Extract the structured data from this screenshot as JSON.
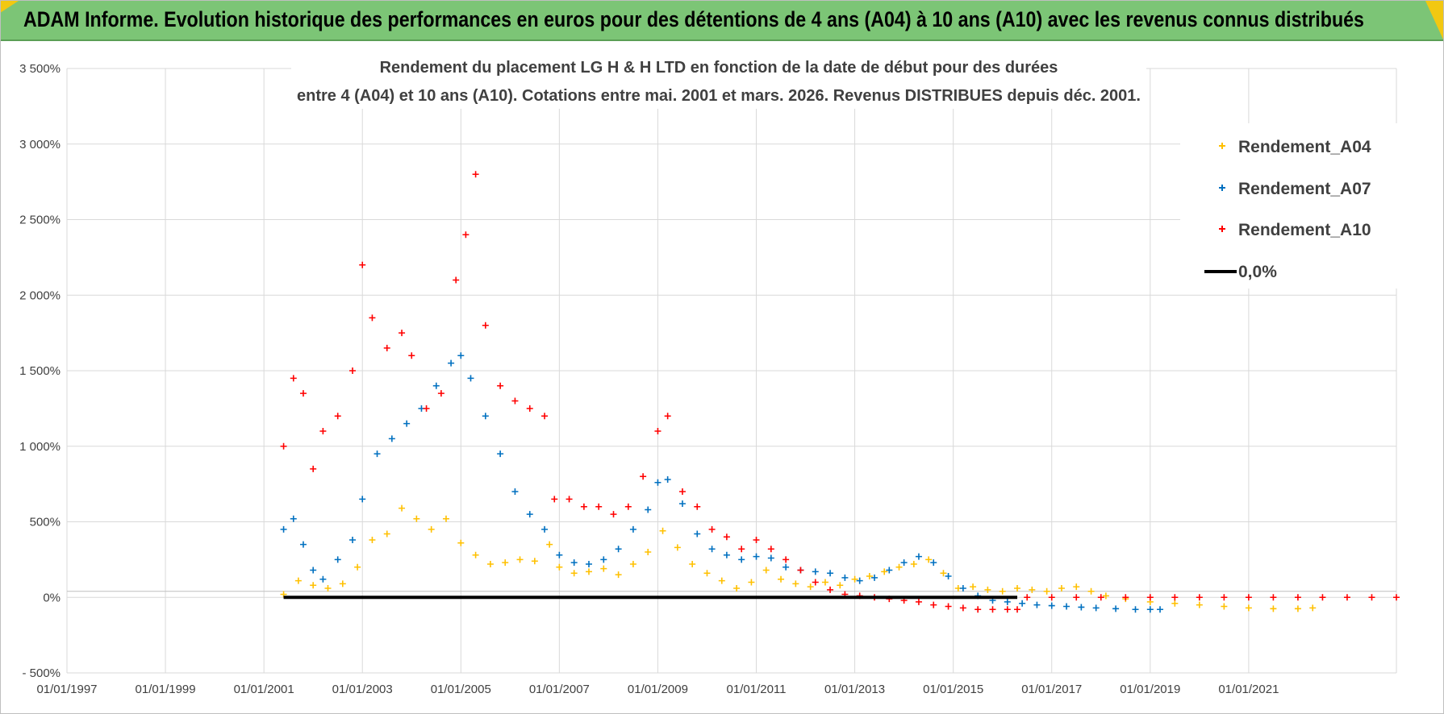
{
  "page": {
    "header_title": "ADAM Informe. Evolution historique des performances en euros pour des détentions de 4 ans (A04) à 10 ans (A10) avec les revenus connus distribués"
  },
  "colors": {
    "header_bg": "#7cc576",
    "corner": "#f2c811",
    "grid": "#d9d9d9",
    "zero_line": "#000000",
    "text": "#404040"
  },
  "chart_data": {
    "type": "scatter",
    "title_line1": "Rendement du placement LG H & H LTD en fonction de la date de début pour des durées",
    "title_line2": "entre 4 (A04) et 10 ans (A10). Cotations entre mai. 2001 et mars. 2026. Revenus DISTRIBUES depuis déc. 2001.",
    "xlabel": "",
    "ylabel": "",
    "x_range": [
      1997.0,
      2024.0
    ],
    "ylim": [
      -500,
      3500
    ],
    "x_tick_values": [
      1997,
      1999,
      2001,
      2003,
      2005,
      2007,
      2009,
      2011,
      2013,
      2015,
      2017,
      2019,
      2021
    ],
    "x_tick_labels": [
      "01/01/1997",
      "01/01/1999",
      "01/01/2001",
      "01/01/2003",
      "01/01/2005",
      "01/01/2007",
      "01/01/2009",
      "01/01/2011",
      "01/01/2013",
      "01/01/2015",
      "01/01/2017",
      "01/01/2019",
      "01/01/2021"
    ],
    "y_tick_values": [
      -500,
      0,
      500,
      1000,
      1500,
      2000,
      2500,
      3000,
      3500
    ],
    "y_tick_labels": [
      "- 500%",
      "0%",
      "500%",
      "1 000%",
      "1 500%",
      "2 000%",
      "2 500%",
      "3 000%",
      "3 500%"
    ],
    "grid": true,
    "legend_position": "top-right",
    "series": [
      {
        "name": "Rendement_A04",
        "color": "#ffc000",
        "marker": "+",
        "x": [
          2001.4,
          2001.7,
          2002.0,
          2002.3,
          2002.6,
          2002.9,
          2003.2,
          2003.5,
          2003.8,
          2004.1,
          2004.4,
          2004.7,
          2005.0,
          2005.3,
          2005.6,
          2005.9,
          2006.2,
          2006.5,
          2006.8,
          2007.0,
          2007.3,
          2007.6,
          2007.9,
          2008.2,
          2008.5,
          2008.8,
          2009.1,
          2009.4,
          2009.7,
          2010.0,
          2010.3,
          2010.6,
          2010.9,
          2011.2,
          2011.5,
          2011.8,
          2012.1,
          2012.4,
          2012.7,
          2013.0,
          2013.3,
          2013.6,
          2013.9,
          2014.2,
          2014.5,
          2014.8,
          2015.1,
          2015.4,
          2015.7,
          2016.0,
          2016.3,
          2016.6,
          2016.9,
          2017.2,
          2017.5,
          2017.8,
          2018.1,
          2018.5,
          2019.0,
          2019.5,
          2020.0,
          2020.5,
          2021.0,
          2021.5,
          2022.0,
          2022.3
        ],
        "y": [
          20,
          110,
          80,
          60,
          90,
          200,
          380,
          420,
          590,
          520,
          450,
          520,
          360,
          280,
          220,
          230,
          250,
          240,
          350,
          200,
          160,
          170,
          190,
          150,
          220,
          300,
          440,
          330,
          220,
          160,
          110,
          60,
          100,
          180,
          120,
          90,
          70,
          100,
          80,
          120,
          140,
          170,
          200,
          220,
          250,
          160,
          60,
          70,
          50,
          40,
          60,
          50,
          40,
          60,
          70,
          40,
          10,
          -10,
          -30,
          -40,
          -50,
          -60,
          -70,
          -75,
          -75,
          -70
        ]
      },
      {
        "name": "Rendement_A07",
        "color": "#0070c0",
        "marker": "+",
        "x": [
          2001.4,
          2001.6,
          2001.8,
          2002.0,
          2002.2,
          2002.5,
          2002.8,
          2003.0,
          2003.3,
          2003.6,
          2003.9,
          2004.2,
          2004.5,
          2004.8,
          2005.0,
          2005.2,
          2005.5,
          2005.8,
          2006.1,
          2006.4,
          2006.7,
          2007.0,
          2007.3,
          2007.6,
          2007.9,
          2008.2,
          2008.5,
          2008.8,
          2009.0,
          2009.2,
          2009.5,
          2009.8,
          2010.1,
          2010.4,
          2010.7,
          2011.0,
          2011.3,
          2011.6,
          2011.9,
          2012.2,
          2012.5,
          2012.8,
          2013.1,
          2013.4,
          2013.7,
          2014.0,
          2014.3,
          2014.6,
          2014.9,
          2015.2,
          2015.5,
          2015.8,
          2016.1,
          2016.4,
          2016.7,
          2017.0,
          2017.3,
          2017.6,
          2017.9,
          2018.3,
          2018.7,
          2019.0,
          2019.2
        ],
        "y": [
          450,
          520,
          350,
          180,
          120,
          250,
          380,
          650,
          950,
          1050,
          1150,
          1250,
          1400,
          1550,
          1600,
          1450,
          1200,
          950,
          700,
          550,
          450,
          280,
          230,
          220,
          250,
          320,
          450,
          580,
          760,
          780,
          620,
          420,
          320,
          280,
          250,
          270,
          260,
          200,
          180,
          170,
          160,
          130,
          110,
          130,
          180,
          230,
          270,
          230,
          140,
          60,
          10,
          -20,
          -30,
          -40,
          -50,
          -55,
          -60,
          -65,
          -70,
          -75,
          -80,
          -80,
          -80
        ]
      },
      {
        "name": "Rendement_A10",
        "color": "#ff0000",
        "marker": "+",
        "x": [
          2001.4,
          2001.6,
          2001.8,
          2002.0,
          2002.2,
          2002.5,
          2002.8,
          2003.0,
          2003.2,
          2003.5,
          2003.8,
          2004.0,
          2004.3,
          2004.6,
          2004.9,
          2005.1,
          2005.3,
          2005.5,
          2005.8,
          2006.1,
          2006.4,
          2006.7,
          2006.9,
          2007.2,
          2007.5,
          2007.8,
          2008.1,
          2008.4,
          2008.7,
          2009.0,
          2009.2,
          2009.5,
          2009.8,
          2010.1,
          2010.4,
          2010.7,
          2011.0,
          2011.3,
          2011.6,
          2011.9,
          2012.2,
          2012.5,
          2012.8,
          2013.1,
          2013.4,
          2013.7,
          2014.0,
          2014.3,
          2014.6,
          2014.9,
          2015.2,
          2015.5,
          2015.8,
          2016.1,
          2016.3,
          2016.5,
          2017.0,
          2017.5,
          2018.0,
          2018.5,
          2019.0,
          2019.5,
          2020.0,
          2020.5,
          2021.0,
          2021.5,
          2022.0,
          2022.5,
          2023.0,
          2023.5,
          2024.0
        ],
        "y": [
          1000,
          1450,
          1350,
          850,
          1100,
          1200,
          1500,
          2200,
          1850,
          1650,
          1750,
          1600,
          1250,
          1350,
          2100,
          2400,
          2800,
          1800,
          1400,
          1300,
          1250,
          1200,
          650,
          650,
          600,
          600,
          550,
          600,
          800,
          1100,
          1200,
          700,
          600,
          450,
          400,
          320,
          380,
          320,
          250,
          180,
          100,
          50,
          20,
          10,
          0,
          -10,
          -20,
          -30,
          -50,
          -60,
          -70,
          -80,
          -80,
          -80,
          -80,
          0,
          0,
          0,
          0,
          0,
          0,
          0,
          0,
          0,
          0,
          0,
          0,
          0,
          0,
          0,
          0
        ]
      },
      {
        "name": "0,0%",
        "color": "#000000",
        "marker": "line",
        "x": [
          2001.4,
          2016.3
        ],
        "y": [
          0,
          0
        ]
      }
    ]
  }
}
